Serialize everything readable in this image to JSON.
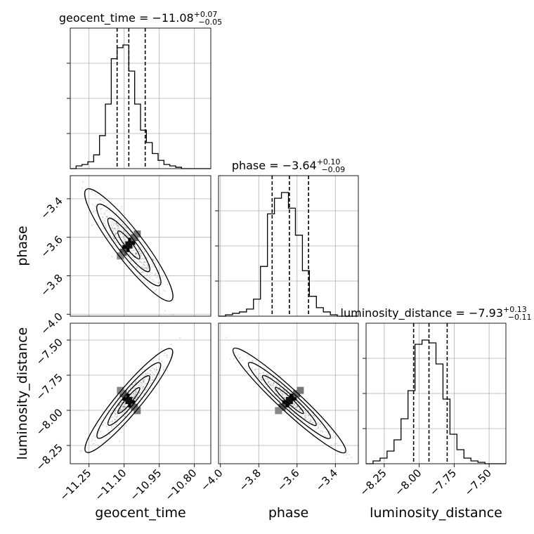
{
  "chart_data": {
    "type": "corner",
    "parameters": [
      "geocent_time",
      "phase",
      "luminosity_distance"
    ],
    "titles": [
      {
        "param": "geocent_time",
        "prefix": "geocent_time = −11.08",
        "sup": "+0.07",
        "sub": "−0.05"
      },
      {
        "param": "phase",
        "prefix": "phase = −3.64",
        "sup": "+0.10",
        "sub": "−0.09"
      },
      {
        "param": "luminosity_distance",
        "prefix": "luminosity_distance = −7.93",
        "sup": "+0.13",
        "sub": "−0.11"
      }
    ],
    "ranges": {
      "geocent_time": [
        -11.33,
        -10.73
      ],
      "phase": [
        -4.01,
        -3.28
      ],
      "luminosity_distance": [
        -8.38,
        -7.38
      ]
    },
    "ticks": {
      "geocent_time": {
        "values": [
          -11.25,
          -11.1,
          -10.95,
          -10.8
        ],
        "labels": [
          "−11.25",
          "−11.10",
          "−10.95",
          "−10.80"
        ]
      },
      "phase": {
        "values": [
          -4.0,
          -3.8,
          -3.6,
          -3.4
        ],
        "labels": [
          "−4.0",
          "−3.8",
          "−3.6",
          "−3.4"
        ]
      },
      "luminosity_distance": {
        "values": [
          -8.25,
          -8.0,
          -7.75,
          -7.5
        ],
        "labels": [
          "−8.25",
          "−8.00",
          "−7.75",
          "−7.50"
        ]
      }
    },
    "quantiles": {
      "geocent_time": [
        -11.13,
        -11.08,
        -11.01
      ],
      "phase": [
        -3.73,
        -3.64,
        -3.54
      ],
      "luminosity_distance": [
        -8.04,
        -7.93,
        -7.8
      ]
    },
    "histograms": {
      "geocent_time": {
        "edges_start": -11.33,
        "bin_width": 0.025,
        "counts": [
          0,
          2,
          3,
          5,
          10,
          24,
          47,
          80,
          88,
          90,
          71,
          47,
          28,
          19,
          11,
          6,
          3,
          2,
          1,
          0,
          0,
          0,
          0,
          0
        ]
      },
      "phase": {
        "edges_start": -4.01,
        "bin_width": 0.0365,
        "counts": [
          0,
          1,
          2,
          3,
          5,
          12,
          35,
          72,
          83,
          87,
          76,
          57,
          32,
          14,
          6,
          3,
          1,
          0,
          0,
          0
        ]
      },
      "luminosity_distance": {
        "edges_start": -8.38,
        "bin_width": 0.05,
        "counts": [
          0,
          2,
          4,
          9,
          17,
          32,
          52,
          85,
          88,
          86,
          71,
          46,
          21,
          10,
          4,
          2,
          1,
          0,
          0,
          0
        ]
      }
    },
    "correlations": {
      "phase_vs_geocent_time": -0.9,
      "luminosity_distance_vs_geocent_time": 0.92,
      "luminosity_distance_vs_phase": -0.95
    },
    "grid": true
  }
}
